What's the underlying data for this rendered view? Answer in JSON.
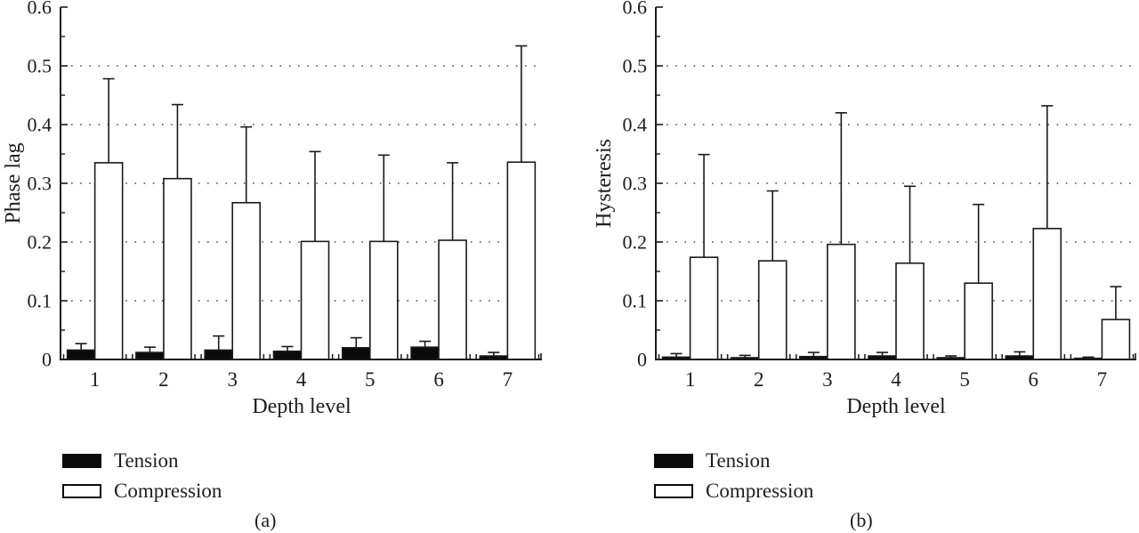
{
  "figure_title": "",
  "colors": {
    "ink": "#1a1a1a",
    "grid_dots": "#4a4a4a",
    "tension_fill": "#0b0b0b",
    "compression_fill": "#ffffff",
    "background": "#ffffff"
  },
  "chart_data": [
    {
      "type": "bar",
      "title": "",
      "ylabel": "Phase lag",
      "xlabel": "Depth level",
      "caption": "(a)",
      "categories": [
        "1",
        "2",
        "3",
        "4",
        "5",
        "6",
        "7"
      ],
      "ylim": [
        0,
        0.6
      ],
      "ytick_labels": [
        "0",
        "0.1",
        "0.2",
        "0.3",
        "0.4",
        "0.5",
        "0.6"
      ],
      "ytick_values": [
        0,
        0.1,
        0.2,
        0.3,
        0.4,
        0.5,
        0.6
      ],
      "minor_tick_values": [
        0.05,
        0.15,
        0.25,
        0.35,
        0.45,
        0.55
      ],
      "gridline_values": [
        0.1,
        0.2,
        0.3,
        0.4,
        0.5
      ],
      "grid_style": "dotted",
      "legend_position": "below-left",
      "series": [
        {
          "name": "Tension",
          "color": "#0b0b0b",
          "values": [
            0.016,
            0.012,
            0.016,
            0.014,
            0.02,
            0.021,
            0.006
          ],
          "errors_up": [
            0.011,
            0.009,
            0.024,
            0.008,
            0.017,
            0.01,
            0.006
          ]
        },
        {
          "name": "Compression",
          "color": "#ffffff",
          "values": [
            0.335,
            0.308,
            0.267,
            0.201,
            0.201,
            0.203,
            0.336
          ],
          "errors_up": [
            0.143,
            0.126,
            0.129,
            0.153,
            0.147,
            0.132,
            0.198
          ]
        }
      ]
    },
    {
      "type": "bar",
      "title": "",
      "ylabel": "Hysteresis",
      "xlabel": "Depth level",
      "caption": "(b)",
      "categories": [
        "1",
        "2",
        "3",
        "4",
        "5",
        "6",
        "7"
      ],
      "ylim": [
        0,
        0.6
      ],
      "ytick_labels": [
        "0",
        "0.1",
        "0.2",
        "0.3",
        "0.4",
        "0.5",
        "0.6"
      ],
      "ytick_values": [
        0,
        0.1,
        0.2,
        0.3,
        0.4,
        0.5,
        0.6
      ],
      "minor_tick_values": [
        0.05,
        0.15,
        0.25,
        0.35,
        0.45,
        0.55
      ],
      "gridline_values": [
        0.1,
        0.2,
        0.3,
        0.4,
        0.5
      ],
      "grid_style": "dotted",
      "legend_position": "below-left",
      "series": [
        {
          "name": "Tension",
          "color": "#0b0b0b",
          "values": [
            0.004,
            0.003,
            0.005,
            0.006,
            0.003,
            0.006,
            0.002
          ],
          "errors_up": [
            0.006,
            0.004,
            0.007,
            0.006,
            0.003,
            0.007,
            0.002
          ]
        },
        {
          "name": "Compression",
          "color": "#ffffff",
          "values": [
            0.174,
            0.168,
            0.196,
            0.164,
            0.13,
            0.223,
            0.068
          ],
          "errors_up": [
            0.175,
            0.119,
            0.224,
            0.131,
            0.134,
            0.209,
            0.056
          ]
        }
      ]
    }
  ]
}
